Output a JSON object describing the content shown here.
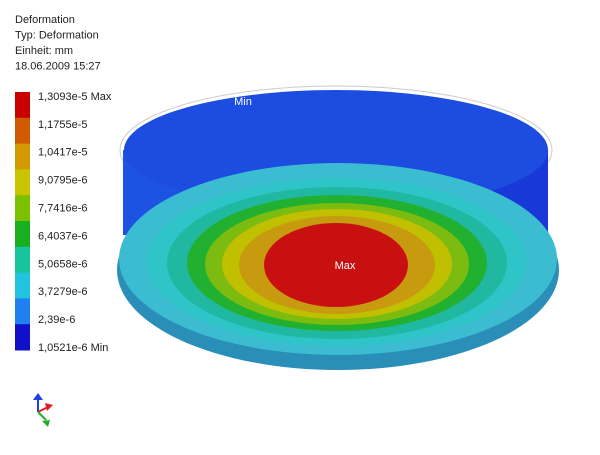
{
  "header": {
    "lines": [
      "Deformation",
      "Typ: Deformation",
      "Einheit: mm",
      "18.06.2009 15:27"
    ]
  },
  "legend": {
    "entries": [
      {
        "label": "1,3093e-5 Max",
        "color": "#c80000"
      },
      {
        "label": "1,1755e-5",
        "color": "#d05a00"
      },
      {
        "label": "1,0417e-5",
        "color": "#d09a00"
      },
      {
        "label": "9,0795e-6",
        "color": "#c8c400"
      },
      {
        "label": "7,7416e-6",
        "color": "#7cc000"
      },
      {
        "label": "6,4037e-6",
        "color": "#18b020"
      },
      {
        "label": "5,0658e-6",
        "color": "#18c49c"
      },
      {
        "label": "3,7279e-6",
        "color": "#20c4dc"
      },
      {
        "label": "2,39e-6",
        "color": "#2080f0"
      },
      {
        "label": "1,0521e-6 Min",
        "color": "#1010c8"
      }
    ]
  },
  "markers": {
    "min": "Min",
    "max": "Max"
  }
}
